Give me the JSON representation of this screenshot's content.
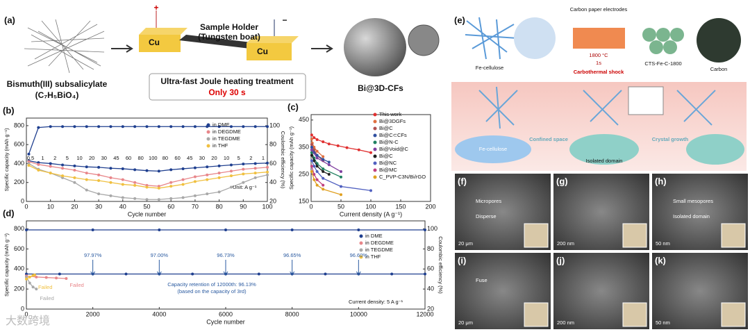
{
  "figure": {
    "panel_a": {
      "label": "(a)",
      "precursor": "Bismuth(III) subsalicylate",
      "formula": "(C₇H₅BiO₄)",
      "electrode_left": "Cu",
      "electrode_right": "Cu",
      "holder": "Sample Holder",
      "holder_sub": "(Tungsten boat)",
      "plus": "+",
      "minus": "−",
      "treatment": "Ultra-fast Joule heating treatment",
      "duration": "Only 30 s",
      "product": "Bi@3D-CFs"
    },
    "panel_e": {
      "label": "(e)",
      "fe_cellulose": "Fe-cellulose",
      "electrodes": "Carbon paper electrodes",
      "temperature": "1800 °C",
      "time": "1s",
      "shock": "Carbothermal shock",
      "product": "CTS-Fe-C-1800",
      "carbon": "Carbon",
      "confined": "Confined space",
      "growth": "Crystal growth",
      "isolated": "Isolated domain",
      "fe_cellulose_2": "Fe-cellulose"
    },
    "micrographs": [
      {
        "label": "(f)",
        "scale": "20 μm",
        "notes": [
          "Micropores",
          "Disperse"
        ]
      },
      {
        "label": "(g)",
        "scale": "200 nm",
        "notes": []
      },
      {
        "label": "(h)",
        "scale": "50 nm",
        "notes": [
          "Small mesopores",
          "Isolated domain"
        ]
      },
      {
        "label": "(i)",
        "scale": "20 μm",
        "notes": [
          "Fuse"
        ]
      },
      {
        "label": "(j)",
        "scale": "200 nm",
        "notes": []
      },
      {
        "label": "(k)",
        "scale": "50 nm",
        "notes": []
      }
    ],
    "watermark": "大数跨境"
  },
  "chart_data": [
    {
      "type": "line",
      "label": "(b)",
      "xlabel": "Cycle number",
      "ylabel": "Specific capacity (mAh g⁻¹)",
      "y2label": "Coulombic efficiency (%)",
      "xlim": [
        0,
        100
      ],
      "xticks": [
        0,
        10,
        20,
        30,
        40,
        50,
        60,
        70,
        80,
        90,
        100
      ],
      "ylim": [
        0,
        880
      ],
      "yticks": [
        0,
        200,
        400,
        600,
        800
      ],
      "y2lim": [
        20,
        108
      ],
      "y2ticks": [
        20,
        40,
        60,
        80,
        100
      ],
      "rate_labels": [
        "0.5",
        "1",
        "2",
        "5",
        "10",
        "20",
        "30",
        "45",
        "60",
        "80",
        "100",
        "80",
        "60",
        "45",
        "30",
        "20",
        "10",
        "5",
        "2",
        "1"
      ],
      "unit_note": "Unit: A g⁻¹",
      "x": [
        1,
        5,
        10,
        15,
        20,
        25,
        30,
        35,
        40,
        45,
        50,
        55,
        60,
        65,
        70,
        75,
        80,
        85,
        90,
        95,
        100
      ],
      "series": [
        {
          "name": "in DME",
          "color": "#1f3f8f",
          "values": [
            430,
            410,
            400,
            385,
            375,
            365,
            360,
            350,
            345,
            335,
            325,
            320,
            335,
            345,
            355,
            365,
            375,
            385,
            395,
            400,
            405
          ]
        },
        {
          "name": "in DEGDME",
          "color": "#e8868a",
          "values": [
            420,
            390,
            370,
            350,
            330,
            300,
            280,
            250,
            230,
            200,
            170,
            160,
            200,
            230,
            260,
            280,
            300,
            320,
            340,
            350,
            360
          ]
        },
        {
          "name": "in TEGDME",
          "color": "#a8a8a8",
          "values": [
            400,
            340,
            300,
            250,
            200,
            120,
            80,
            60,
            40,
            30,
            20,
            20,
            30,
            40,
            60,
            80,
            100,
            150,
            200,
            250,
            280
          ]
        },
        {
          "name": "in THF",
          "color": "#f0c040",
          "values": [
            380,
            330,
            300,
            270,
            250,
            230,
            220,
            200,
            180,
            170,
            150,
            140,
            160,
            180,
            210,
            230,
            250,
            270,
            290,
            300,
            310
          ]
        }
      ],
      "efficiency_series": [
        {
          "color": "#1f3f8f",
          "axis": "y2",
          "values": [
            70,
            98,
            99,
            99,
            99,
            99,
            99,
            99,
            99,
            99,
            99,
            99,
            99,
            99,
            99,
            99,
            99,
            99,
            99,
            99,
            99
          ]
        }
      ]
    },
    {
      "type": "line",
      "label": "(c)",
      "xlabel": "Current density (A g⁻¹)",
      "ylabel": "Specific capacity (mAh g⁻¹)",
      "xlim": [
        0,
        200
      ],
      "xticks": [
        0,
        50,
        100,
        150,
        200
      ],
      "ylim": [
        150,
        470
      ],
      "yticks": [
        150,
        250,
        350,
        450
      ],
      "series": [
        {
          "name": "This work",
          "color": "#e03030",
          "x": [
            1,
            5,
            10,
            20,
            30,
            45,
            60,
            80,
            100
          ],
          "values": [
            395,
            385,
            378,
            370,
            362,
            355,
            348,
            340,
            330
          ]
        },
        {
          "name": "Bi@3DGFs",
          "color": "#e07040",
          "x": [
            1,
            2,
            5,
            10,
            20
          ],
          "values": [
            380,
            365,
            350,
            335,
            315
          ]
        },
        {
          "name": "Bi@C",
          "color": "#b05050",
          "x": [
            1,
            5,
            10,
            20
          ],
          "values": [
            360,
            340,
            320,
            300
          ]
        },
        {
          "name": "Bi@C⊂CFs",
          "color": "#3050a0",
          "x": [
            1,
            5,
            10,
            20,
            30
          ],
          "values": [
            350,
            330,
            320,
            305,
            295
          ]
        },
        {
          "name": "Bi@N-C",
          "color": "#208060",
          "x": [
            1,
            5,
            10,
            20,
            50
          ],
          "values": [
            330,
            310,
            290,
            270,
            240
          ]
        },
        {
          "name": "Bi@Void@C",
          "color": "#8040a0",
          "x": [
            1,
            10,
            30,
            50
          ],
          "values": [
            340,
            310,
            285,
            260
          ]
        },
        {
          "name": "Bi@C",
          "color": "#202020",
          "x": [
            1,
            5,
            10,
            20,
            30
          ],
          "values": [
            320,
            300,
            280,
            260,
            250
          ]
        },
        {
          "name": "Bi@NC",
          "color": "#5060c0",
          "x": [
            1,
            5,
            10,
            20,
            50,
            100
          ],
          "values": [
            300,
            280,
            260,
            235,
            205,
            190
          ]
        },
        {
          "name": "Bi@MC",
          "color": "#c04080",
          "x": [
            1,
            5,
            10,
            20
          ],
          "values": [
            280,
            250,
            230,
            210
          ]
        },
        {
          "name": "C_PVP-C3N/Bi/rGO",
          "color": "#e0a020",
          "x": [
            1,
            5,
            10,
            20,
            50
          ],
          "values": [
            260,
            230,
            210,
            195,
            175
          ]
        }
      ]
    },
    {
      "type": "line",
      "label": "(d)",
      "xlabel": "Cycle number",
      "ylabel": "Specific capacity (mAh g⁻¹)",
      "y2label": "Coulombic efficiency (%)",
      "xlim": [
        0,
        12000
      ],
      "xticks": [
        0,
        2000,
        4000,
        6000,
        8000,
        10000,
        12000
      ],
      "ylim": [
        0,
        880
      ],
      "yticks": [
        0,
        200,
        400,
        600,
        800
      ],
      "y2lim": [
        20,
        108
      ],
      "y2ticks": [
        20,
        40,
        60,
        80,
        100
      ],
      "series": [
        {
          "name": "in DME",
          "color": "#1f3f8f",
          "x": [
            0,
            1000,
            2000,
            3000,
            4000,
            5000,
            6000,
            7000,
            8000,
            9000,
            10000,
            11000,
            12000
          ],
          "values": [
            350,
            350,
            350,
            350,
            350,
            350,
            350,
            350,
            350,
            350,
            350,
            350,
            350
          ]
        },
        {
          "name": "in DEGDME",
          "color": "#e8868a",
          "x": [
            0,
            300,
            600,
            900,
            1200
          ],
          "values": [
            330,
            320,
            315,
            310,
            305
          ]
        },
        {
          "name": "in TEGDME",
          "color": "#a8a8a8",
          "x": [
            0,
            100,
            200,
            300
          ],
          "values": [
            320,
            260,
            220,
            200
          ]
        },
        {
          "name": "in THF",
          "color": "#f0c040",
          "x": [
            0,
            100,
            200,
            250
          ],
          "values": [
            300,
            320,
            335,
            340
          ]
        }
      ],
      "efficiency_series": [
        {
          "color": "#1f3f8f",
          "axis": "y2",
          "x": [
            0,
            2000,
            4000,
            6000,
            8000,
            10000,
            12000
          ],
          "values": [
            99,
            99,
            99,
            99,
            99,
            99,
            99
          ]
        }
      ],
      "failed_labels": [
        "Failed",
        "Failed",
        "Failed"
      ],
      "retention_labels": [
        "97.97%",
        "97.00%",
        "96.73%",
        "96.65%",
        "96.60%"
      ],
      "retention_note": "Capacity retention of 12000th: 96.13%",
      "retention_basis": "(based on the capacity of 3rd)",
      "current_note": "Current density: 5 A g⁻¹"
    }
  ]
}
